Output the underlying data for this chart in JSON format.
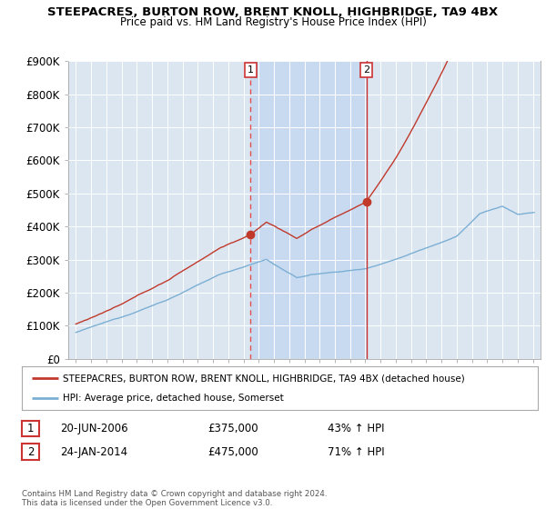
{
  "title": "STEEPACRES, BURTON ROW, BRENT KNOLL, HIGHBRIDGE, TA9 4BX",
  "subtitle": "Price paid vs. HM Land Registry's House Price Index (HPI)",
  "ylim": [
    0,
    900000
  ],
  "yticks": [
    0,
    100000,
    200000,
    300000,
    400000,
    500000,
    600000,
    700000,
    800000,
    900000
  ],
  "ytick_labels": [
    "£0",
    "£100K",
    "£200K",
    "£300K",
    "£400K",
    "£500K",
    "£600K",
    "£700K",
    "£800K",
    "£900K"
  ],
  "background_color": "#ffffff",
  "plot_bg_color": "#dce6f1",
  "shade_color": "#c5d8f0",
  "red_line_color": "#c0392b",
  "blue_line_color": "#7bafd4",
  "sale1_date": 2006.47,
  "sale1_price": 375000,
  "sale2_date": 2014.07,
  "sale2_price": 475000,
  "vline1_color": "#e05050",
  "vline2_color": "#cc3333",
  "box_edge_color": "#cc3333",
  "legend_line1": "STEEPACRES, BURTON ROW, BRENT KNOLL, HIGHBRIDGE, TA9 4BX (detached house)",
  "legend_line2": "HPI: Average price, detached house, Somerset",
  "annotation1_date": "20-JUN-2006",
  "annotation1_price": "£375,000",
  "annotation1_hpi": "43% ↑ HPI",
  "annotation2_date": "24-JAN-2014",
  "annotation2_price": "£475,000",
  "annotation2_hpi": "71% ↑ HPI",
  "copyright_text": "Contains HM Land Registry data © Crown copyright and database right 2024.\nThis data is licensed under the Open Government Licence v3.0.",
  "xstart": 1994.5,
  "xend": 2025.5
}
